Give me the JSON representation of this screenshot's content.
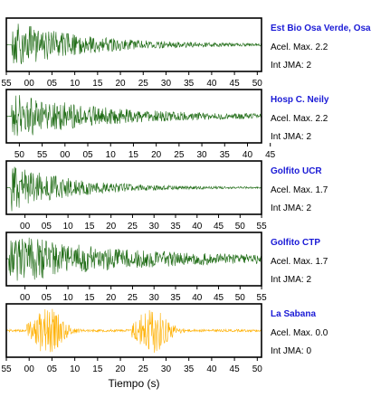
{
  "chart_data": {
    "type": "line",
    "xlabel": "Tiempo (s)",
    "colors": {
      "normal": "#1e6b14",
      "low": "#ffb000",
      "station": "#1a1ad6"
    },
    "panels": [
      {
        "station": "Est Bio Osa Verde, Osa",
        "accel_label": "Acel. Max. 2.2",
        "jma_label": "Int JMA: 2",
        "color": "normal",
        "ticks": [
          "55",
          "00",
          "05",
          "10",
          "15",
          "20",
          "25",
          "30",
          "35",
          "40",
          "45",
          "50"
        ],
        "tick_first_frac": 0.0,
        "tick_step_frac": 0.0894,
        "envelope": {
          "onset": 0.02,
          "decay": 0.28,
          "peak": 0.95,
          "noise": 0.03
        }
      },
      {
        "station": "Hosp C. Neily",
        "accel_label": "Acel. Max. 2.2",
        "jma_label": "Int JMA: 2",
        "color": "normal",
        "ticks": [
          "50",
          "55",
          "00",
          "05",
          "10",
          "15",
          "20",
          "25",
          "30",
          "35",
          "40",
          "45"
        ],
        "tick_first_frac": 0.051,
        "tick_step_frac": 0.0894,
        "envelope": {
          "onset": 0.02,
          "decay": 0.32,
          "peak": 0.95,
          "noise": 0.06
        }
      },
      {
        "station": "Golfito UCR",
        "accel_label": "Acel. Max. 1.7",
        "jma_label": "Int JMA: 2",
        "color": "normal",
        "ticks": [
          "00",
          "05",
          "10",
          "15",
          "20",
          "25",
          "30",
          "35",
          "40",
          "45",
          "50",
          "55"
        ],
        "tick_first_frac": 0.073,
        "tick_step_frac": 0.0843,
        "envelope": {
          "onset": 0.015,
          "decay": 0.24,
          "peak": 0.95,
          "noise": 0.02
        }
      },
      {
        "station": "Golfito CTP",
        "accel_label": "Acel. Max. 1.7",
        "jma_label": "Int JMA: 2",
        "color": "normal",
        "ticks": [
          "00",
          "05",
          "10",
          "15",
          "20",
          "25",
          "30",
          "35",
          "40",
          "45",
          "50",
          "55"
        ],
        "tick_first_frac": 0.073,
        "tick_step_frac": 0.0843,
        "envelope": {
          "onset": 0.01,
          "decay": 0.4,
          "peak": 0.95,
          "noise": 0.1
        }
      },
      {
        "station": "La Sabana",
        "accel_label": "Acel. Max. 0.0",
        "jma_label": "Int JMA: 0",
        "color": "low",
        "ticks": [
          "55",
          "00",
          "05",
          "10",
          "15",
          "20",
          "25",
          "30",
          "35",
          "40",
          "45",
          "50"
        ],
        "tick_first_frac": 0.0,
        "tick_step_frac": 0.0894,
        "envelope": {
          "onset": 0.09,
          "decay": 0.0,
          "peak": 0.9,
          "noise": 0.05,
          "bursts": [
            0.09,
            0.5
          ]
        }
      }
    ]
  }
}
